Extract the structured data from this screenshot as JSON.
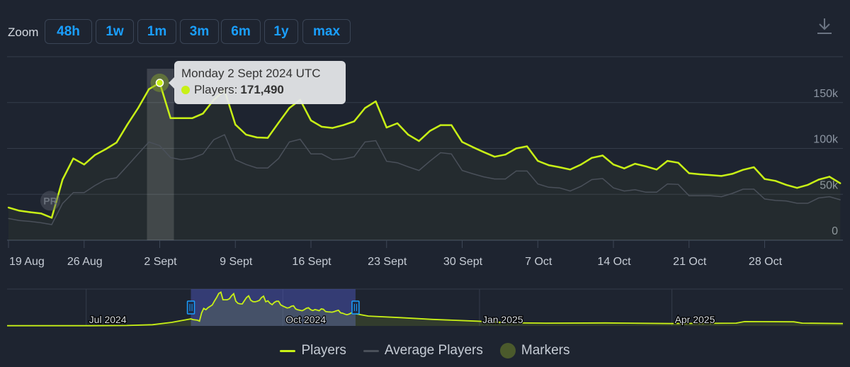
{
  "zoom": {
    "label": "Zoom",
    "buttons": [
      "48h",
      "1w",
      "1m",
      "3m",
      "6m",
      "1y",
      "max"
    ]
  },
  "download_icon": "download-icon",
  "tooltip": {
    "date": "Monday 2 Sept 2024 UTC",
    "series_label": "Players:",
    "value": "171,490"
  },
  "colors": {
    "players": "#c8f016",
    "average": "#4a505a",
    "markers": "#4b5a2c",
    "button_text": "#1a9fff",
    "background": "#1e2430"
  },
  "legend": [
    {
      "label": "Players",
      "type": "line"
    },
    {
      "label": "Average Players",
      "type": "line"
    },
    {
      "label": "Markers",
      "type": "dot"
    }
  ],
  "chart_data": {
    "type": "line",
    "title": "",
    "xlabel": "",
    "ylabel": "",
    "ylim": [
      0,
      200000
    ],
    "y_ticks": [
      {
        "value": 0,
        "label": "0"
      },
      {
        "value": 50000,
        "label": "50k"
      },
      {
        "value": 100000,
        "label": "100k"
      },
      {
        "value": 150000,
        "label": "150k"
      }
    ],
    "x_ticks": [
      {
        "date": "2024-08-19",
        "label": "19 Aug"
      },
      {
        "date": "2024-08-26",
        "label": "26 Aug"
      },
      {
        "date": "2024-09-02",
        "label": "2 Sept"
      },
      {
        "date": "2024-09-09",
        "label": "9 Sept"
      },
      {
        "date": "2024-09-16",
        "label": "16 Sept"
      },
      {
        "date": "2024-09-23",
        "label": "23 Sept"
      },
      {
        "date": "2024-09-30",
        "label": "30 Sept"
      },
      {
        "date": "2024-10-07",
        "label": "7 Oct"
      },
      {
        "date": "2024-10-14",
        "label": "14 Oct"
      },
      {
        "date": "2024-10-21",
        "label": "21 Oct"
      },
      {
        "date": "2024-10-28",
        "label": "28 Oct"
      }
    ],
    "grid": true,
    "legend_position": "bottom",
    "highlighted": {
      "date": "2024-09-02",
      "value": 171490
    },
    "markers": [
      {
        "date": "2024-08-23",
        "label": "PR"
      }
    ],
    "x": [
      "2024-08-19",
      "2024-08-20",
      "2024-08-21",
      "2024-08-22",
      "2024-08-23",
      "2024-08-24",
      "2024-08-25",
      "2024-08-26",
      "2024-08-27",
      "2024-08-28",
      "2024-08-29",
      "2024-08-30",
      "2024-08-31",
      "2024-09-01",
      "2024-09-02",
      "2024-09-03",
      "2024-09-04",
      "2024-09-05",
      "2024-09-06",
      "2024-09-07",
      "2024-09-08",
      "2024-09-09",
      "2024-09-10",
      "2024-09-11",
      "2024-09-12",
      "2024-09-13",
      "2024-09-14",
      "2024-09-15",
      "2024-09-16",
      "2024-09-17",
      "2024-09-18",
      "2024-09-19",
      "2024-09-20",
      "2024-09-21",
      "2024-09-22",
      "2024-09-23",
      "2024-09-24",
      "2024-09-25",
      "2024-09-26",
      "2024-09-27",
      "2024-09-28",
      "2024-09-29",
      "2024-09-30",
      "2024-10-01",
      "2024-10-02",
      "2024-10-03",
      "2024-10-04",
      "2024-10-05",
      "2024-10-06",
      "2024-10-07",
      "2024-10-08",
      "2024-10-09",
      "2024-10-10",
      "2024-10-11",
      "2024-10-12",
      "2024-10-13",
      "2024-10-14",
      "2024-10-15",
      "2024-10-16",
      "2024-10-17",
      "2024-10-18",
      "2024-10-19",
      "2024-10-20",
      "2024-10-21",
      "2024-10-22",
      "2024-10-23",
      "2024-10-24",
      "2024-10-25",
      "2024-10-26",
      "2024-10-27",
      "2024-10-28",
      "2024-10-29",
      "2024-10-30",
      "2024-10-31",
      "2024-11-01",
      "2024-11-02",
      "2024-11-03",
      "2024-11-04"
    ],
    "series": [
      {
        "name": "Players",
        "values": [
          35600,
          32100,
          30500,
          29200,
          24400,
          66000,
          89000,
          82500,
          92800,
          99200,
          106400,
          126000,
          144000,
          164600,
          171490,
          133000,
          133000,
          133000,
          138000,
          153000,
          163300,
          126000,
          115000,
          112000,
          111500,
          128000,
          144000,
          153000,
          130500,
          123600,
          122300,
          125400,
          129500,
          144000,
          151300,
          122800,
          127400,
          115000,
          108000,
          119000,
          125400,
          125400,
          107000,
          101300,
          96000,
          91000,
          93300,
          100000,
          102300,
          86400,
          81800,
          79500,
          77000,
          82500,
          89700,
          92300,
          82500,
          78200,
          83300,
          80500,
          77000,
          86400,
          84400,
          73000,
          71800,
          71000,
          70000,
          72300,
          76700,
          79500,
          66700,
          64600,
          60300,
          57000,
          60300,
          66000,
          69200,
          62000
        ]
      },
      {
        "name": "Average Players",
        "values": [
          23600,
          21500,
          20500,
          19000,
          17000,
          40000,
          51800,
          51800,
          59500,
          66000,
          68000,
          81000,
          94000,
          107000,
          103000,
          90000,
          87700,
          89500,
          94000,
          109500,
          115000,
          87700,
          82500,
          78700,
          78700,
          89000,
          107000,
          110000,
          94000,
          94000,
          87700,
          88500,
          91000,
          107000,
          108500,
          86000,
          84400,
          80000,
          76000,
          86000,
          95400,
          94000,
          76000,
          72300,
          69000,
          66700,
          66700,
          75400,
          75400,
          61300,
          57700,
          57000,
          53600,
          58700,
          66000,
          67200,
          57000,
          53600,
          55000,
          52300,
          52300,
          61300,
          60800,
          48500,
          48500,
          48500,
          47400,
          51000,
          55600,
          55600,
          44900,
          43300,
          42800,
          40200,
          40200,
          46000,
          47400,
          44000
        ]
      }
    ],
    "navigator": {
      "range": [
        "2024-05-25",
        "2025-06-20"
      ],
      "selection": [
        "2024-08-19",
        "2024-11-04"
      ],
      "month_labels": [
        {
          "date": "2024-07-01",
          "label": "Jul 2024"
        },
        {
          "date": "2024-10-01",
          "label": "Oct 2024"
        },
        {
          "date": "2025-01-01",
          "label": "Jan 2025"
        },
        {
          "date": "2025-04-01",
          "label": "Apr 2025"
        }
      ],
      "points": [
        [
          "2024-05-25",
          1000
        ],
        [
          "2024-07-01",
          1200
        ],
        [
          "2024-07-20",
          2000
        ],
        [
          "2024-08-01",
          6000
        ],
        [
          "2024-08-10",
          18000
        ],
        [
          "2024-08-18",
          34000
        ],
        [
          "2024-11-10",
          50000
        ],
        [
          "2024-11-25",
          42000
        ],
        [
          "2024-12-10",
          33000
        ],
        [
          "2024-12-31",
          24000
        ],
        [
          "2025-01-15",
          16000
        ],
        [
          "2025-02-01",
          14000
        ],
        [
          "2025-03-01",
          15000
        ],
        [
          "2025-04-01",
          12000
        ],
        [
          "2025-05-01",
          14000
        ],
        [
          "2025-05-05",
          22000
        ],
        [
          "2025-05-28",
          21000
        ],
        [
          "2025-06-01",
          14000
        ],
        [
          "2025-06-20",
          12000
        ]
      ]
    }
  }
}
